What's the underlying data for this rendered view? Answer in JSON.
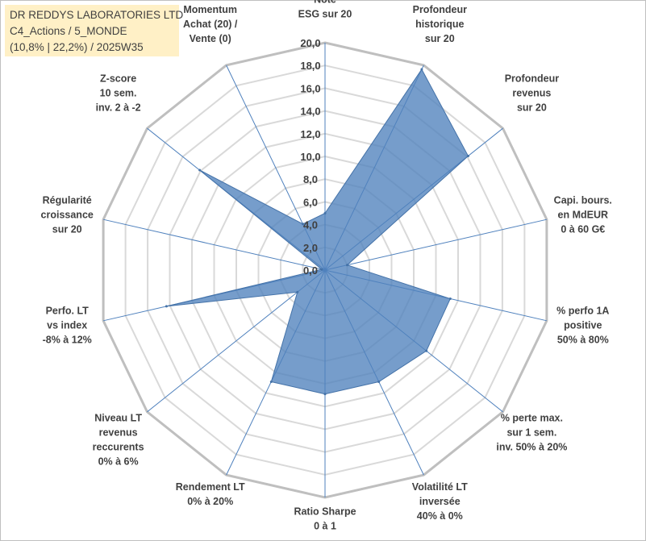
{
  "chart_data": {
    "type": "radar",
    "title_lines": [
      "DR REDDYS LABORATORIES LTD",
      "C4_Actions / 5_MONDE",
      "(10,8% | 22,2%) / 2025W35"
    ],
    "axes": [
      [
        "Note",
        "ESG sur 20"
      ],
      [
        "Profondeur",
        "historique",
        "sur 20"
      ],
      [
        "Profondeur",
        "revenus",
        "sur 20"
      ],
      [
        "Capi. bours.",
        "en MdEUR",
        "0 à 60 G€"
      ],
      [
        "% perfo 1A",
        "positive",
        "50% à 80%"
      ],
      [
        "% perte max.",
        "sur 1 sem.",
        "inv. 50% à 20%"
      ],
      [
        "Volatilité LT",
        "inversée",
        "40% à 0%"
      ],
      [
        "Ratio Sharpe",
        "0 à 1"
      ],
      [
        "Rendement LT",
        "0% à 20%"
      ],
      [
        "Niveau LT",
        "revenus",
        "reccurents",
        "0% à 6%"
      ],
      [
        "Perfo. LT",
        "vs index",
        "-8% à 12%"
      ],
      [
        "Régularité",
        "croissance",
        "sur 20"
      ],
      [
        "Z-score",
        "10 sem.",
        "inv. 2 à -2"
      ],
      [
        "Momentum",
        "Achat (20) /",
        "Vente (0)"
      ]
    ],
    "values": [
      5.0,
      19.6,
      16.1,
      2.0,
      11.3,
      11.4,
      10.9,
      10.9,
      10.9,
      3.1,
      14.3,
      0.3,
      14.1,
      4.5
    ],
    "r_range": [
      0,
      20
    ],
    "r_ticks": [
      "0,0",
      "2,0",
      "4,0",
      "6,0",
      "8,0",
      "10,0",
      "12,0",
      "14,0",
      "16,0",
      "18,0",
      "20,0"
    ],
    "series_color": "#4f81bd",
    "grid": true
  }
}
